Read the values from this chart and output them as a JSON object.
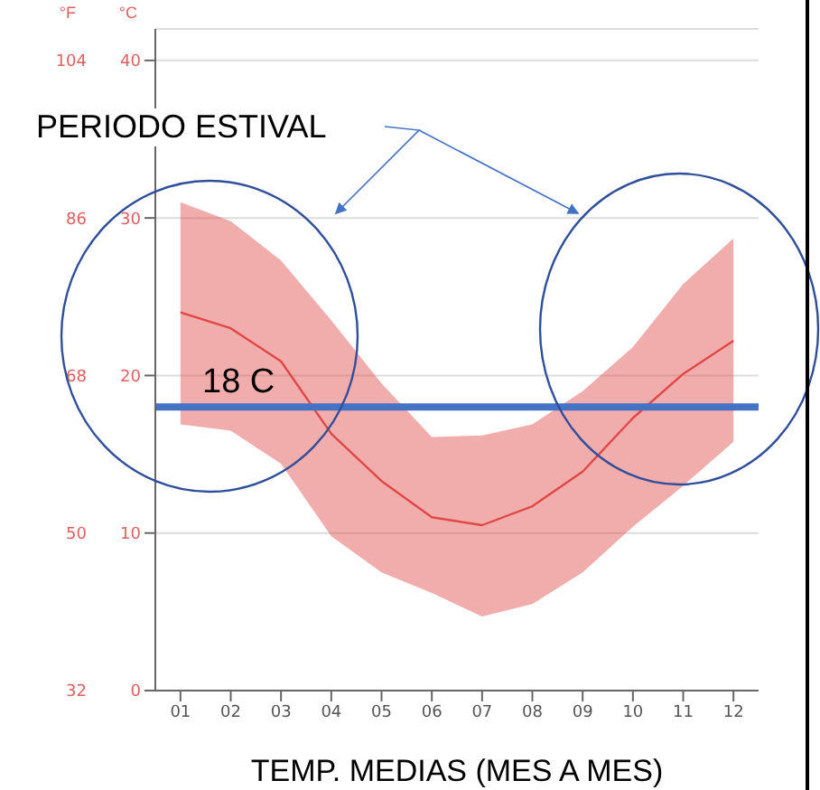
{
  "chart_data": {
    "type": "line",
    "xlabel": "TEMP. MEDIAS (MES A MES)",
    "ylabel": "°C",
    "y2label": "°F",
    "categories": [
      "01",
      "02",
      "03",
      "04",
      "05",
      "06",
      "07",
      "08",
      "09",
      "10",
      "11",
      "12"
    ],
    "series": [
      {
        "color": "#e04848",
        "values": [
          24.0,
          23.0,
          20.9,
          16.3,
          13.3,
          11.0,
          10.5,
          11.7,
          13.9,
          17.3,
          20.1,
          22.2
        ],
        "lower": [
          16.9,
          16.5,
          14.4,
          9.8,
          7.5,
          6.2,
          4.7,
          5.5,
          7.5,
          10.4,
          13.0,
          15.8
        ],
        "upper": [
          31.0,
          29.8,
          27.3,
          23.5,
          19.5,
          16.1,
          16.2,
          16.9,
          19.0,
          21.8,
          25.8,
          28.7
        ]
      }
    ],
    "ylim": [
      0,
      42
    ],
    "yticks": [
      0,
      10,
      20,
      30,
      40
    ],
    "y2lim": [
      32,
      107.6
    ],
    "y2ticks": [
      32,
      50,
      68,
      86,
      104
    ],
    "grid": "y",
    "marker": "none",
    "line_style": "solid",
    "ref_lines": [
      {
        "axis": "y",
        "value": 18,
        "label": "18 C",
        "color": "#4472c4",
        "line_style": "solid"
      }
    ],
    "annotations": [
      "PERIODO ESTIVAL"
    ]
  }
}
